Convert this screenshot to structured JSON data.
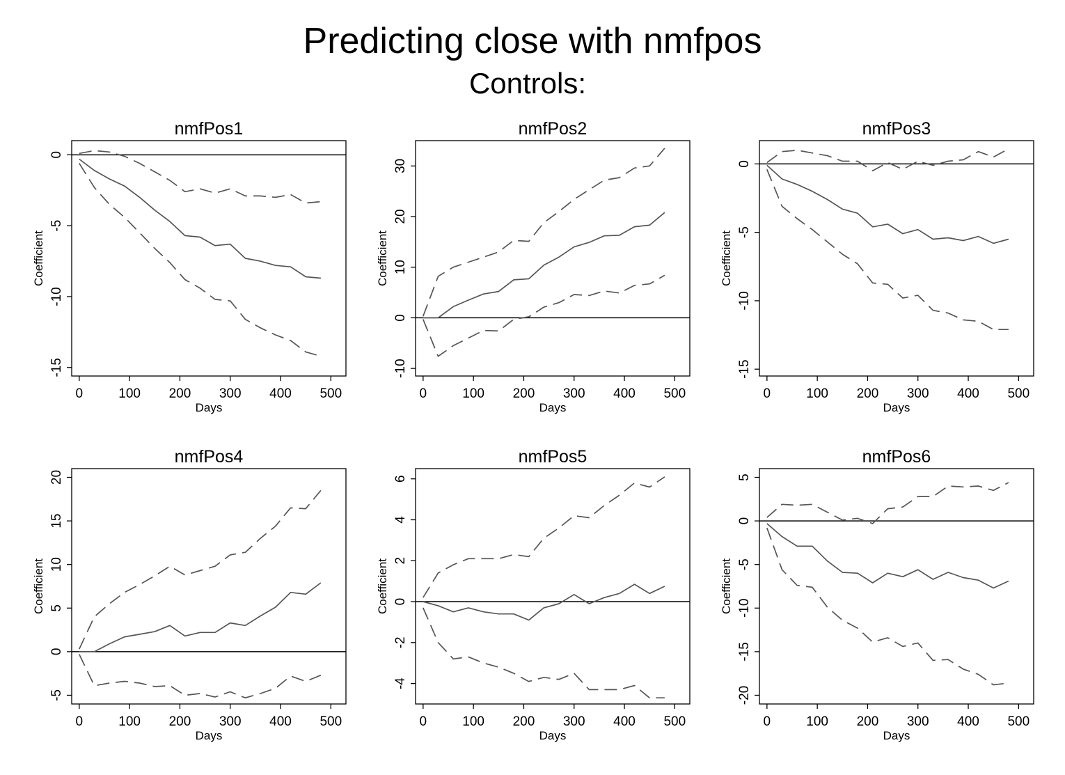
{
  "figure": {
    "title": "Predicting close with nmfpos",
    "subtitle": "Controls:"
  },
  "chart_data": [
    {
      "type": "line",
      "title": "nmfPos1",
      "xlabel": "Days",
      "ylabel": "Coefficient",
      "xlim": [
        -15,
        530
      ],
      "ylim": [
        -15.6,
        1.0
      ],
      "xticks": [
        0,
        100,
        200,
        300,
        400,
        500
      ],
      "yticks": [
        0,
        -5,
        -10,
        -15
      ],
      "zero_line": true,
      "x": [
        0,
        30,
        60,
        90,
        120,
        150,
        180,
        210,
        240,
        270,
        300,
        330,
        360,
        390,
        420,
        450,
        480
      ],
      "series": [
        {
          "style": "solid",
          "values": [
            -0.3,
            -1.1,
            -1.7,
            -2.2,
            -3.0,
            -3.9,
            -4.7,
            -5.7,
            -5.8,
            -6.4,
            -6.3,
            -7.3,
            -7.5,
            -7.8,
            -7.9,
            -8.6,
            -8.7
          ]
        },
        {
          "style": "dashed",
          "values": [
            0.1,
            0.3,
            0.2,
            -0.1,
            -0.6,
            -1.2,
            -1.8,
            -2.6,
            -2.4,
            -2.7,
            -2.4,
            -2.9,
            -2.9,
            -3.0,
            -2.8,
            -3.4,
            -3.3
          ]
        },
        {
          "style": "dashed",
          "values": [
            -0.6,
            -2.3,
            -3.5,
            -4.4,
            -5.5,
            -6.6,
            -7.6,
            -8.8,
            -9.4,
            -10.2,
            -10.3,
            -11.6,
            -12.2,
            -12.7,
            -13.1,
            -13.9,
            -14.2
          ]
        }
      ]
    },
    {
      "type": "line",
      "title": "nmfPos2",
      "xlabel": "Days",
      "ylabel": "Coefficient",
      "xlim": [
        -15,
        530
      ],
      "ylim": [
        -11.5,
        35.0
      ],
      "xticks": [
        0,
        100,
        200,
        300,
        400,
        500
      ],
      "yticks": [
        30,
        20,
        10,
        0,
        -10
      ],
      "zero_line": true,
      "x": [
        0,
        30,
        60,
        90,
        120,
        150,
        180,
        210,
        240,
        270,
        300,
        330,
        360,
        390,
        420,
        450,
        480
      ],
      "series": [
        {
          "style": "solid",
          "values": [
            0,
            0,
            2.2,
            3.5,
            4.7,
            5.2,
            7.5,
            7.7,
            10.4,
            12.0,
            14.0,
            14.9,
            16.2,
            16.3,
            18.0,
            18.3,
            20.8
          ]
        },
        {
          "style": "dashed",
          "values": [
            0.3,
            8.2,
            10.0,
            11.0,
            12.0,
            13.0,
            15.3,
            15.1,
            18.8,
            21.0,
            23.4,
            25.3,
            27.2,
            27.7,
            29.6,
            30.0,
            33.5
          ]
        },
        {
          "style": "dashed",
          "values": [
            -0.3,
            -7.6,
            -5.5,
            -4.0,
            -2.5,
            -2.6,
            -0.3,
            0.2,
            2.1,
            3.0,
            4.6,
            4.4,
            5.3,
            4.9,
            6.4,
            6.7,
            8.4
          ]
        }
      ]
    },
    {
      "type": "line",
      "title": "nmfPos3",
      "xlabel": "Days",
      "ylabel": "Coefficient",
      "xlim": [
        -15,
        530
      ],
      "ylim": [
        -15.5,
        1.7
      ],
      "xticks": [
        0,
        100,
        200,
        300,
        400,
        500
      ],
      "yticks": [
        0,
        -5,
        -10,
        -15
      ],
      "zero_line": true,
      "x": [
        0,
        30,
        60,
        90,
        120,
        150,
        180,
        210,
        240,
        270,
        300,
        330,
        360,
        390,
        420,
        450,
        480
      ],
      "series": [
        {
          "style": "solid",
          "values": [
            -0.1,
            -1.1,
            -1.5,
            -2.0,
            -2.6,
            -3.3,
            -3.6,
            -4.6,
            -4.4,
            -5.1,
            -4.8,
            -5.5,
            -5.4,
            -5.6,
            -5.3,
            -5.8,
            -5.5
          ]
        },
        {
          "style": "dashed",
          "values": [
            0.1,
            0.9,
            1.0,
            0.8,
            0.6,
            0.2,
            0.2,
            -0.5,
            0.1,
            -0.4,
            0.2,
            -0.1,
            0.2,
            0.3,
            0.9,
            0.5,
            1.1
          ]
        },
        {
          "style": "dashed",
          "values": [
            -0.4,
            -3.1,
            -4.0,
            -4.8,
            -5.7,
            -6.6,
            -7.3,
            -8.7,
            -8.8,
            -9.8,
            -9.6,
            -10.7,
            -10.9,
            -11.4,
            -11.5,
            -12.1,
            -12.1
          ]
        }
      ]
    },
    {
      "type": "line",
      "title": "nmfPos4",
      "xlabel": "Days",
      "ylabel": "Coefficient",
      "xlim": [
        -15,
        530
      ],
      "ylim": [
        -6.0,
        21.0
      ],
      "xticks": [
        0,
        100,
        200,
        300,
        400,
        500
      ],
      "yticks": [
        20,
        15,
        10,
        5,
        0,
        -5
      ],
      "zero_line": true,
      "x": [
        0,
        30,
        60,
        90,
        120,
        150,
        180,
        210,
        240,
        270,
        300,
        330,
        360,
        390,
        420,
        450,
        480
      ],
      "series": [
        {
          "style": "solid",
          "values": [
            0,
            0,
            0.9,
            1.7,
            2.0,
            2.3,
            3.0,
            1.8,
            2.2,
            2.2,
            3.3,
            3.0,
            4.1,
            5.1,
            6.8,
            6.6,
            7.9
          ]
        },
        {
          "style": "dashed",
          "values": [
            0.3,
            4.0,
            5.5,
            6.8,
            7.7,
            8.7,
            9.8,
            8.8,
            9.3,
            9.8,
            11.1,
            11.4,
            13.0,
            14.4,
            16.5,
            16.4,
            18.5
          ]
        },
        {
          "style": "dashed",
          "values": [
            -0.3,
            -3.9,
            -3.6,
            -3.4,
            -3.6,
            -4.0,
            -3.9,
            -5.0,
            -4.8,
            -5.2,
            -4.6,
            -5.3,
            -4.8,
            -4.2,
            -2.8,
            -3.4,
            -2.7
          ]
        }
      ]
    },
    {
      "type": "line",
      "title": "nmfPos5",
      "xlabel": "Days",
      "ylabel": "Coefficient",
      "xlim": [
        -15,
        530
      ],
      "ylim": [
        -5.0,
        6.5
      ],
      "xticks": [
        0,
        100,
        200,
        300,
        400,
        500
      ],
      "yticks": [
        6,
        4,
        2,
        0,
        -2,
        -4
      ],
      "zero_line": true,
      "x": [
        0,
        30,
        60,
        90,
        120,
        150,
        180,
        210,
        240,
        270,
        300,
        330,
        360,
        390,
        420,
        450,
        480
      ],
      "series": [
        {
          "style": "solid",
          "values": [
            0,
            -0.2,
            -0.5,
            -0.3,
            -0.5,
            -0.6,
            -0.6,
            -0.9,
            -0.3,
            -0.1,
            0.35,
            -0.1,
            0.2,
            0.4,
            0.85,
            0.4,
            0.75
          ]
        },
        {
          "style": "dashed",
          "values": [
            0.2,
            1.4,
            1.8,
            2.1,
            2.1,
            2.1,
            2.3,
            2.2,
            3.1,
            3.6,
            4.2,
            4.1,
            4.7,
            5.2,
            5.8,
            5.6,
            6.1
          ]
        },
        {
          "style": "dashed",
          "values": [
            -0.3,
            -2.0,
            -2.8,
            -2.7,
            -3.0,
            -3.2,
            -3.5,
            -3.9,
            -3.7,
            -3.8,
            -3.5,
            -4.3,
            -4.3,
            -4.3,
            -4.1,
            -4.7,
            -4.7
          ]
        }
      ]
    },
    {
      "type": "line",
      "title": "nmfPos6",
      "xlabel": "Days",
      "ylabel": "Coefficient",
      "xlim": [
        -15,
        530
      ],
      "ylim": [
        -21.0,
        6.0
      ],
      "xticks": [
        0,
        100,
        200,
        300,
        400,
        500
      ],
      "yticks": [
        5,
        0,
        -5,
        -10,
        -15,
        -20
      ],
      "zero_line": true,
      "x": [
        0,
        30,
        60,
        90,
        120,
        150,
        180,
        210,
        240,
        270,
        300,
        330,
        360,
        390,
        420,
        450,
        480
      ],
      "series": [
        {
          "style": "solid",
          "values": [
            -0.3,
            -1.8,
            -2.9,
            -2.9,
            -4.6,
            -5.9,
            -6.0,
            -7.1,
            -6.0,
            -6.4,
            -5.6,
            -6.7,
            -5.9,
            -6.5,
            -6.8,
            -7.7,
            -6.9
          ]
        },
        {
          "style": "dashed",
          "values": [
            0.4,
            1.9,
            1.8,
            1.9,
            1.0,
            0.1,
            0.3,
            -0.3,
            1.4,
            1.6,
            2.8,
            2.8,
            4.0,
            3.9,
            4.0,
            3.5,
            4.4
          ]
        },
        {
          "style": "dashed",
          "values": [
            -0.8,
            -5.6,
            -7.4,
            -7.6,
            -9.9,
            -11.4,
            -12.3,
            -13.9,
            -13.4,
            -14.4,
            -14.0,
            -16.0,
            -15.9,
            -17.0,
            -17.6,
            -18.8,
            -18.6
          ]
        }
      ]
    }
  ]
}
